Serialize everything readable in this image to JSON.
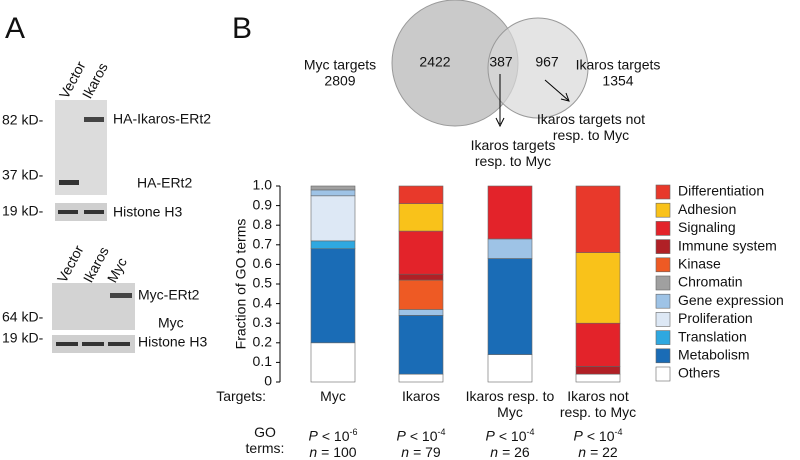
{
  "panel_a": {
    "label": "A",
    "blot1": {
      "lanes": [
        "Vector",
        "Ikaros"
      ],
      "markers": [
        "82 kD-",
        "37 kD-",
        "19 kD-"
      ],
      "bands": [
        "HA-Ikaros-ERt2",
        "HA-ERt2",
        "Histone H3"
      ]
    },
    "blot2": {
      "lanes": [
        "Vector",
        "Ikaros",
        "Myc"
      ],
      "markers": [
        "64 kD-",
        "19 kD-"
      ],
      "bands": [
        "Myc-ERt2",
        "Myc",
        "Histone H3"
      ]
    }
  },
  "panel_b": {
    "label": "B",
    "venn": {
      "left_label": "Myc targets",
      "left_total": 2809,
      "left_only": 2422,
      "overlap": 387,
      "right_only": 967,
      "right_label": "Ikaros targets",
      "right_total": 1354,
      "overlap_note": "Ikaros targets resp. to Myc",
      "right_note": "Ikaros targets not resp. to Myc"
    },
    "row_targets": "Targets:",
    "row_go": "GO terms:",
    "go_stats": [
      {
        "p": "P",
        "op": "< 10",
        "exp": "-6",
        "n": "n",
        "eq": "= 100"
      },
      {
        "p": "P",
        "op": "< 10",
        "exp": "-4",
        "n": "n",
        "eq": "= 79"
      },
      {
        "p": "P",
        "op": "< 10",
        "exp": "-4",
        "n": "n",
        "eq": "= 26"
      },
      {
        "p": "P",
        "op": "< 10",
        "exp": "-4",
        "n": "n",
        "eq": "= 22"
      }
    ]
  },
  "chart_data": {
    "type": "stacked_bar",
    "y_label": "Fraction of GO terms",
    "categories": [
      "Myc",
      "Ikaros",
      "Ikaros resp. to Myc",
      "Ikaros not resp. to Myc"
    ],
    "ylim": [
      0,
      1
    ],
    "yticks": [
      0,
      0.1,
      0.2,
      0.3,
      0.4,
      0.5,
      0.6,
      0.7,
      0.8,
      0.9,
      {
        "value": 1,
        "label": "1.0"
      }
    ],
    "series": [
      {
        "name": "Others",
        "color": "#ffffff",
        "values": [
          0.2,
          0.04,
          0.14,
          0.04
        ]
      },
      {
        "name": "Metabolism",
        "color": "#1a6cb6",
        "values": [
          0.48,
          0.3,
          0.49,
          0
        ]
      },
      {
        "name": "Translation",
        "color": "#2fa8e0",
        "values": [
          0.04,
          0,
          0,
          0
        ]
      },
      {
        "name": "Proliferation",
        "color": "#dde8f5",
        "values": [
          0.23,
          0,
          0,
          0
        ]
      },
      {
        "name": "Gene expression",
        "color": "#9ec3e6",
        "values": [
          0.03,
          0.03,
          0.1,
          0
        ]
      },
      {
        "name": "Chromatin",
        "color": "#a0a0a0",
        "values": [
          0.02,
          0,
          0,
          0
        ]
      },
      {
        "name": "Kinase",
        "color": "#ee5a24",
        "values": [
          0,
          0.15,
          0,
          0
        ]
      },
      {
        "name": "Immune system",
        "color": "#b02026",
        "values": [
          0,
          0.03,
          0,
          0.04
        ]
      },
      {
        "name": "Signaling",
        "color": "#e3232a",
        "values": [
          0,
          0.22,
          0.27,
          0.22
        ]
      },
      {
        "name": "Adhesion",
        "color": "#f9c21a",
        "values": [
          0,
          0.14,
          0,
          0.36
        ]
      },
      {
        "name": "Differentiation",
        "color": "#e8392b",
        "values": [
          0,
          0.09,
          0,
          0.34
        ]
      }
    ]
  }
}
